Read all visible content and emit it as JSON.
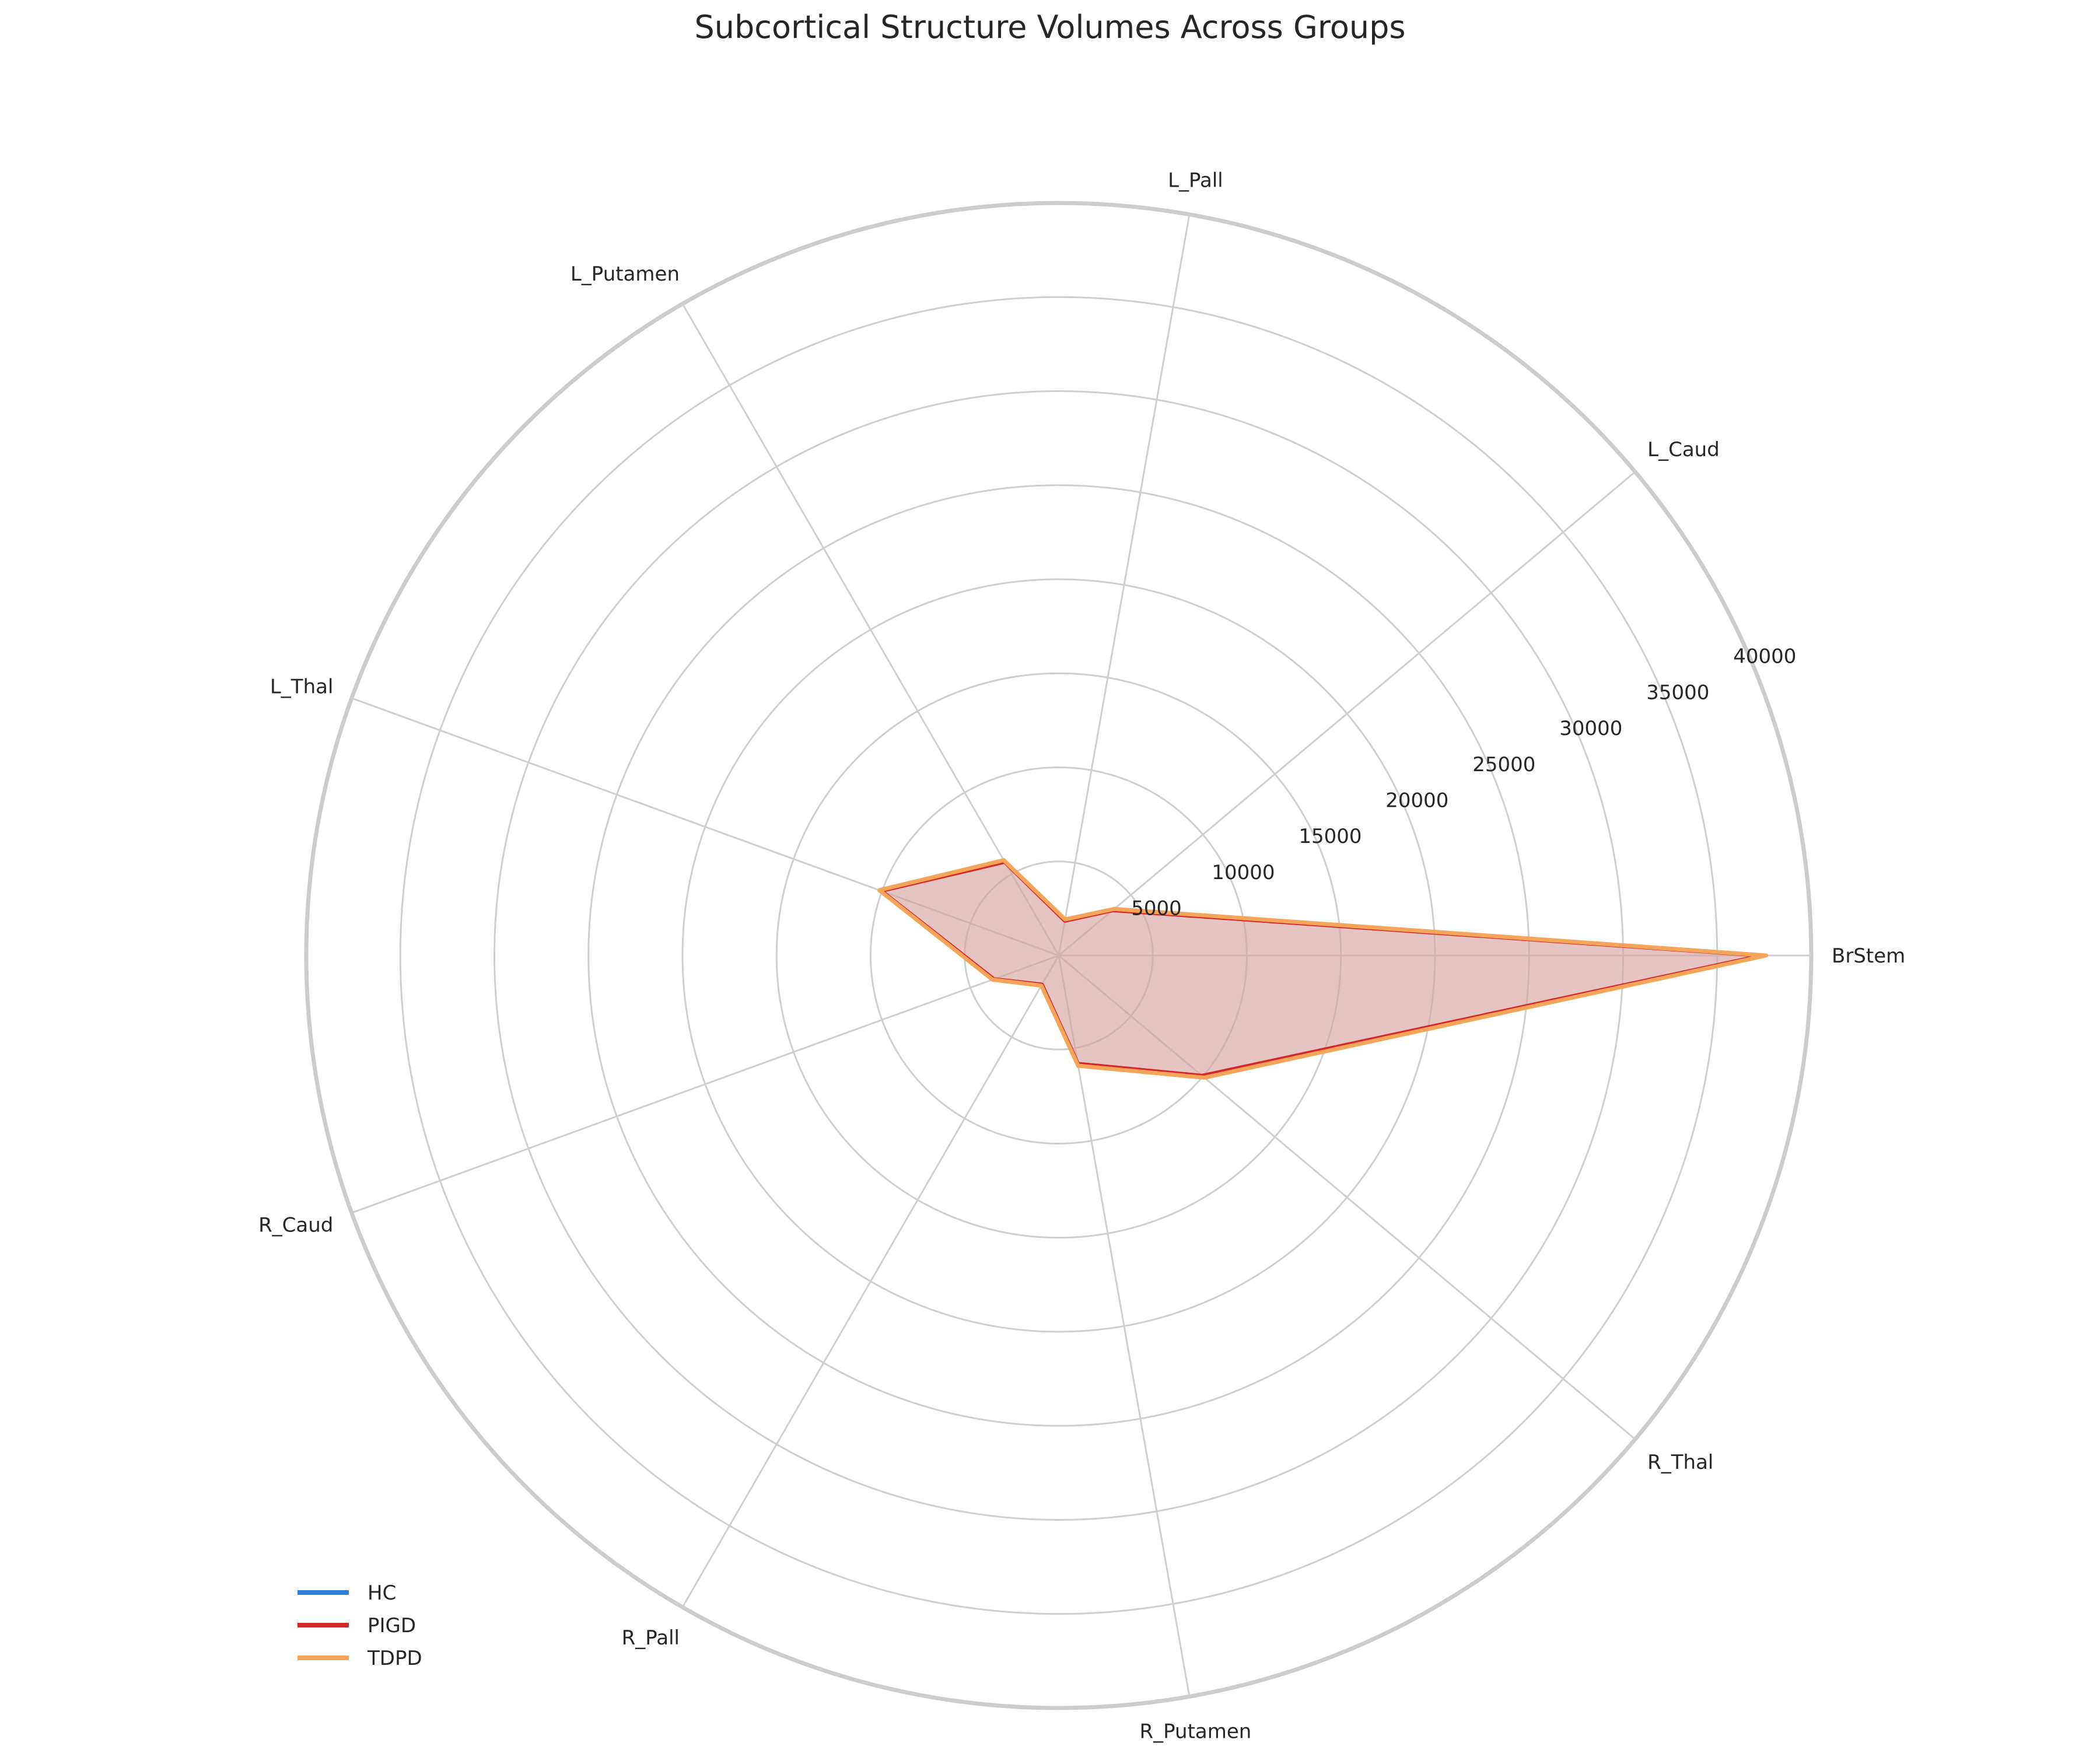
{
  "chart_data": {
    "type": "radar",
    "title": "Subcortical Structure Volumes Across Groups",
    "categories": [
      "BrStem",
      "L_Caud",
      "L_Pall",
      "L_Putamen",
      "L_Thal",
      "R_Caud",
      "R_Pall",
      "R_Putamen",
      "R_Thal"
    ],
    "r_ticks": [
      5000,
      10000,
      15000,
      20000,
      25000,
      30000,
      35000,
      40000
    ],
    "r_tick_labels": [
      "5000",
      "10000",
      "15000",
      "20000",
      "25000",
      "30000",
      "35000",
      "40000"
    ],
    "rlim": [
      0,
      40000
    ],
    "grid": true,
    "legend_position": "bottom-left",
    "series": [
      {
        "name": "HC",
        "color": "#2f7ed8",
        "values": [
          37500,
          3800,
          1900,
          5800,
          10100,
          3700,
          1800,
          5900,
          10000
        ]
      },
      {
        "name": "PIGD",
        "color": "#d62728",
        "values": [
          37400,
          3750,
          1880,
          5750,
          10050,
          3680,
          1790,
          5850,
          9950
        ]
      },
      {
        "name": "TDPD",
        "color": "#f5a55a",
        "values": [
          37600,
          3850,
          1950,
          5850,
          10150,
          3750,
          1850,
          5950,
          10100
        ]
      }
    ],
    "fill_color": "#d9a3a3"
  }
}
